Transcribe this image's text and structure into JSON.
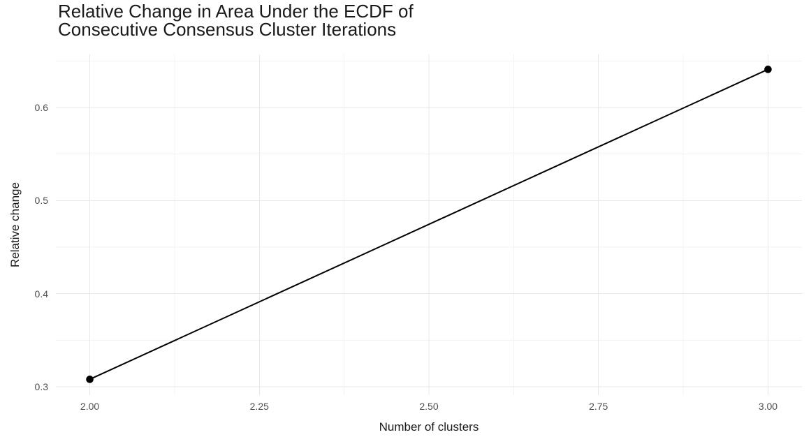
{
  "chart_data": {
    "type": "line",
    "title": "Relative Change in Area Under the ECDF of Consecutive Consensus Cluster Iterations",
    "title_lines": [
      "Relative Change in Area Under the ECDF of",
      "Consecutive Consensus Cluster Iterations"
    ],
    "xlabel": "Number of clusters",
    "ylabel": "Relative change",
    "series": [
      {
        "name": "relative-change",
        "points": [
          {
            "x": 2.0,
            "y": 0.308
          },
          {
            "x": 3.0,
            "y": 0.641
          }
        ]
      }
    ],
    "x_ticks": {
      "values": [
        2.0,
        2.25,
        2.5,
        2.75,
        3.0
      ],
      "labels": [
        "2.00",
        "2.25",
        "2.50",
        "2.75",
        "3.00"
      ]
    },
    "y_ticks": {
      "values": [
        0.3,
        0.4,
        0.5,
        0.6
      ],
      "labels": [
        "0.3",
        "0.4",
        "0.5",
        "0.6"
      ]
    },
    "x_minor_gridlines": [
      2.125,
      2.375,
      2.625,
      2.875
    ],
    "y_minor_gridlines": [
      0.35,
      0.45,
      0.55,
      0.65
    ],
    "xlim": [
      1.95,
      3.05
    ],
    "ylim": [
      0.291,
      0.657
    ],
    "grid": "major-and-minor",
    "legend": "none",
    "style": {
      "background": "#ffffff",
      "major_grid_color": "#e8e8e8",
      "minor_grid_color": "#f3f3f3",
      "line_color": "#000000",
      "point_color": "#000000",
      "line_width": 2,
      "point_radius": 5.3,
      "axis_text_color": "#4d4d4d",
      "title_color": "#1a1a1a"
    }
  }
}
